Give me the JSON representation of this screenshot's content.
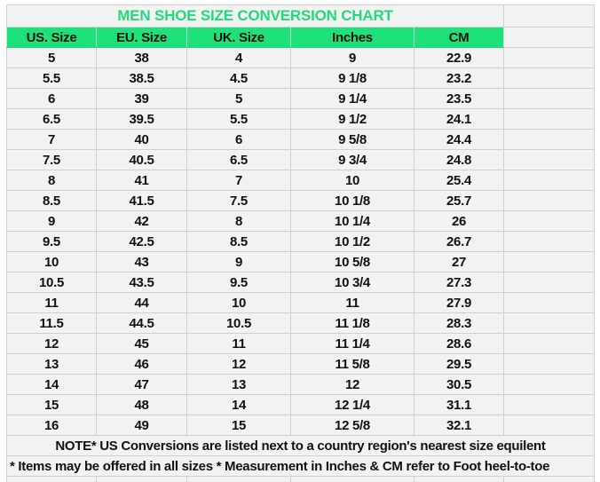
{
  "title": "MEN SHOE SIZE CONVERSION CHART",
  "colors": {
    "title": "#1fdc7a",
    "header_bg": "#1de27a",
    "cell_bg": "#f2f2f2",
    "grid": "#d0d0d0"
  },
  "headers": [
    "US. Size",
    "EU. Size",
    "UK. Size",
    "Inches",
    "CM"
  ],
  "rows": [
    [
      "5",
      "38",
      "4",
      "9",
      "22.9"
    ],
    [
      "5.5",
      "38.5",
      "4.5",
      "9 1/8",
      "23.2"
    ],
    [
      "6",
      "39",
      "5",
      "9 1/4",
      "23.5"
    ],
    [
      "6.5",
      "39.5",
      "5.5",
      "9 1/2",
      "24.1"
    ],
    [
      "7",
      "40",
      "6",
      "9 5/8",
      "24.4"
    ],
    [
      "7.5",
      "40.5",
      "6.5",
      "9 3/4",
      "24.8"
    ],
    [
      "8",
      "41",
      "7",
      "10",
      "25.4"
    ],
    [
      "8.5",
      "41.5",
      "7.5",
      "10 1/8",
      "25.7"
    ],
    [
      "9",
      "42",
      "8",
      "10 1/4",
      "26"
    ],
    [
      "9.5",
      "42.5",
      "8.5",
      "10 1/2",
      "26.7"
    ],
    [
      "10",
      "43",
      "9",
      "10 5/8",
      "27"
    ],
    [
      "10.5",
      "43.5",
      "9.5",
      "10 3/4",
      "27.3"
    ],
    [
      "11",
      "44",
      "10",
      "11",
      "27.9"
    ],
    [
      "11.5",
      "44.5",
      "10.5",
      "11 1/8",
      "28.3"
    ],
    [
      "12",
      "45",
      "11",
      "11 1/4",
      "28.6"
    ],
    [
      "13",
      "46",
      "12",
      "11 5/8",
      "29.5"
    ],
    [
      "14",
      "47",
      "13",
      "12",
      "30.5"
    ],
    [
      "15",
      "48",
      "14",
      "12 1/4",
      "31.1"
    ],
    [
      "16",
      "49",
      "15",
      "12 5/8",
      "32.1"
    ]
  ],
  "notes": [
    "NOTE* US Conversions are listed next to a country region's nearest size equilent",
    "* Items may be offered in all sizes * Measurement in Inches & CM refer to Foot heel-to-toe"
  ]
}
